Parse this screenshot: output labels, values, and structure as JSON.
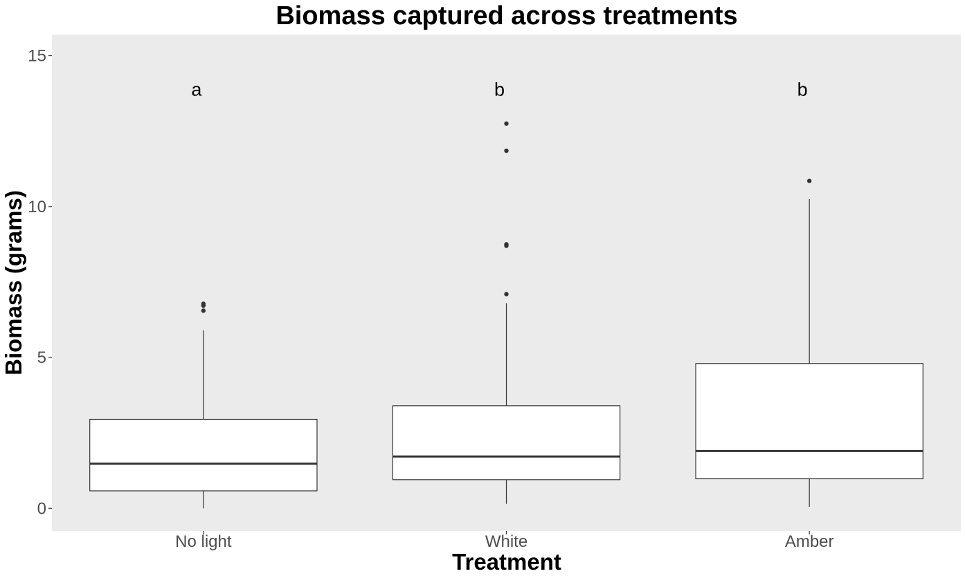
{
  "chart_data": {
    "type": "box",
    "title": "Biomass captured across treatments",
    "xlabel": "Treatment",
    "ylabel": "Biomass (grams)",
    "categories": [
      "No light",
      "White",
      "Amber"
    ],
    "ylim": [
      -0.75,
      15.7
    ],
    "yticks": [
      0,
      5,
      10,
      15
    ],
    "grid": false,
    "panel_color": "#ebebeb",
    "box_fill": "#ffffff",
    "line_color": "#333333",
    "boxes": [
      {
        "category": "No light",
        "whisker_low": 0.0,
        "q1": 0.58,
        "median": 1.48,
        "q3": 2.95,
        "whisker_high": 5.9,
        "outliers": [
          6.55,
          6.72,
          6.78
        ],
        "letter": "a"
      },
      {
        "category": "White",
        "whisker_low": 0.15,
        "q1": 0.95,
        "median": 1.72,
        "q3": 3.4,
        "whisker_high": 6.8,
        "outliers": [
          7.1,
          8.7,
          8.75,
          11.85,
          12.75
        ],
        "letter": "b"
      },
      {
        "category": "Amber",
        "whisker_low": 0.05,
        "q1": 0.98,
        "median": 1.9,
        "q3": 4.8,
        "whisker_high": 10.25,
        "outliers": [
          10.85
        ],
        "letter": "b"
      }
    ],
    "letter_y": 13.9
  }
}
